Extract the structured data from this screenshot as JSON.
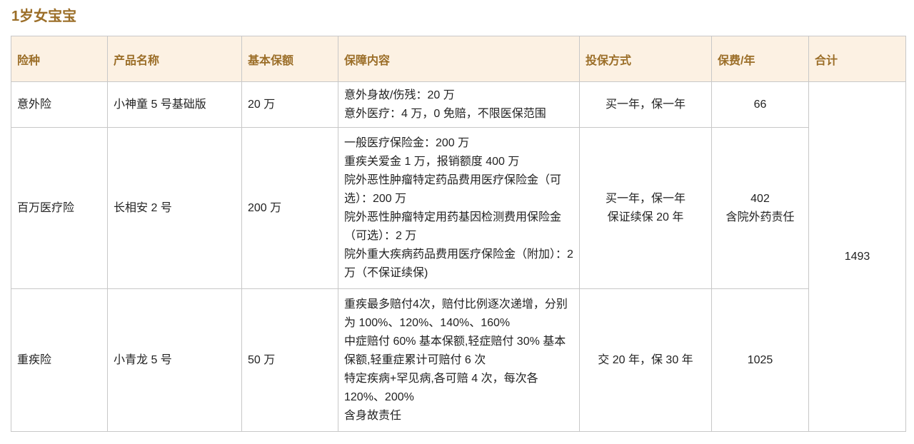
{
  "title": "1岁女宝宝",
  "headers": [
    "险种",
    "产品名称",
    "基本保额",
    "保障内容",
    "投保方式",
    "保费/年",
    "合计"
  ],
  "rows": [
    {
      "type": "意外险",
      "product": "小神童 5 号基础版",
      "amount": "20 万",
      "coverage": [
        "意外身故/伤残：20 万",
        "意外医疗：4 万，0 免赔，不限医保范围"
      ],
      "method": [
        "买一年，保一年"
      ],
      "premium": [
        "66"
      ]
    },
    {
      "type": "百万医疗险",
      "product": "长相安 2 号",
      "amount": "200 万",
      "coverage": [
        "一般医疗保险金：200 万",
        "重疾关爱金 1 万，报销额度 400 万",
        "院外恶性肿瘤特定药品费用医疗保险金（可选）：200 万",
        "院外恶性肿瘤特定用药基因检测费用保险金（可选）：2 万",
        "院外重大疾病药品费用医疗保险金（附加）：2 万（不保证续保)"
      ],
      "method": [
        "买一年，保一年",
        "保证续保 20 年"
      ],
      "premium": [
        "402",
        "含院外药责任"
      ]
    },
    {
      "type": "重疾险",
      "product": "小青龙 5 号",
      "amount": "50 万",
      "coverage": [
        "重疾最多赔付4次，赔付比例逐次递增，分别为 100%、120%、140%、160%",
        "中症赔付 60% 基本保额,轻症赔付 30% 基本保额,轻重症累计可赔付 6 次",
        "特定疾病+罕见病,各可赔 4 次，每次各 120%、200%",
        "含身故责任"
      ],
      "method": [
        "交 20 年，保 30 年"
      ],
      "premium": [
        "1025"
      ]
    }
  ],
  "total": "1493"
}
